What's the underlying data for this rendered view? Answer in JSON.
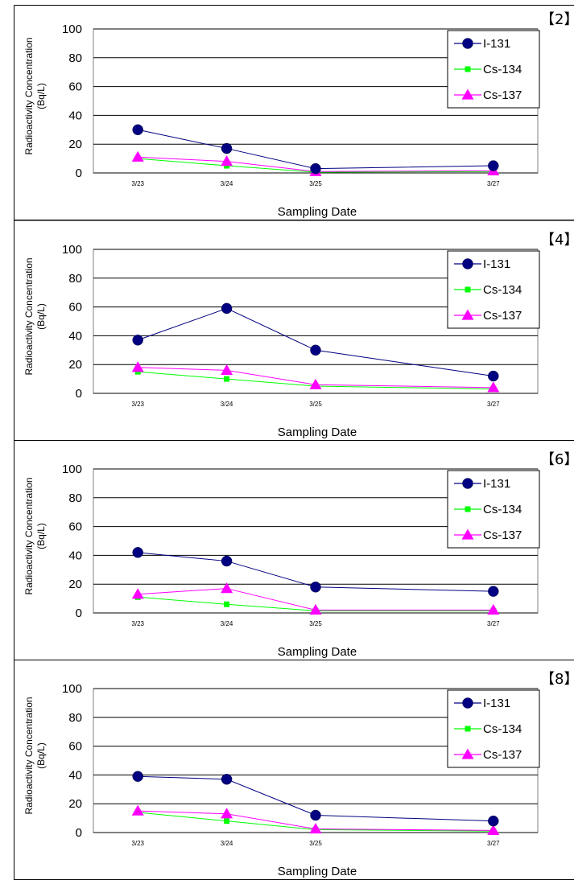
{
  "chart_data": [
    {
      "type": "line",
      "panel_label": "【2】",
      "xlabel": "Sampling Date",
      "ylabel": "Radioactivity Concentration (Bq/L)",
      "ylabel_lines": [
        "Radioactivity Concentration",
        "(Bq/L)"
      ],
      "ylim": [
        0,
        100
      ],
      "yticks": [
        0,
        20,
        40,
        60,
        80,
        100
      ],
      "x_dates": [
        "3/23",
        "3/24",
        "3/25",
        "3/27"
      ],
      "x_days": [
        23,
        24,
        25,
        27
      ],
      "grid": "horizontal",
      "legend_position": "top-right",
      "series": [
        {
          "name": "I-131",
          "values": [
            30,
            17,
            3,
            5
          ]
        },
        {
          "name": "Cs-134",
          "values": [
            10,
            5,
            0.5,
            1
          ]
        },
        {
          "name": "Cs-137",
          "values": [
            11,
            8,
            1,
            1.5
          ]
        }
      ]
    },
    {
      "type": "line",
      "panel_label": "【4】",
      "xlabel": "Sampling Date",
      "ylabel": "Radioactivity Concentration (Bq/L)",
      "ylabel_lines": [
        "Radioactivity Concentration",
        "(Bq/L)"
      ],
      "ylim": [
        0,
        100
      ],
      "yticks": [
        0,
        20,
        40,
        60,
        80,
        100
      ],
      "x_dates": [
        "3/23",
        "3/24",
        "3/25",
        "3/27"
      ],
      "x_days": [
        23,
        24,
        25,
        27
      ],
      "grid": "horizontal",
      "legend_position": "top-right",
      "series": [
        {
          "name": "I-131",
          "values": [
            37,
            59,
            30,
            12
          ]
        },
        {
          "name": "Cs-134",
          "values": [
            15,
            10,
            5,
            3
          ]
        },
        {
          "name": "Cs-137",
          "values": [
            18,
            16,
            6,
            4
          ]
        }
      ]
    },
    {
      "type": "line",
      "panel_label": "【6】",
      "xlabel": "Sampling Date",
      "ylabel": "Radioactivity Concentration (Bq/L)",
      "ylabel_lines": [
        "Radioactivity Concentration",
        "(Bq/L)"
      ],
      "ylim": [
        0,
        100
      ],
      "yticks": [
        0,
        20,
        40,
        60,
        80,
        100
      ],
      "x_dates": [
        "3/23",
        "3/24",
        "3/25",
        "3/27"
      ],
      "x_days": [
        23,
        24,
        25,
        27
      ],
      "grid": "horizontal",
      "legend_position": "top-right",
      "series": [
        {
          "name": "I-131",
          "values": [
            42,
            36,
            18,
            15
          ]
        },
        {
          "name": "Cs-134",
          "values": [
            11,
            6,
            1.5,
            1.5
          ]
        },
        {
          "name": "Cs-137",
          "values": [
            13,
            17,
            2,
            2
          ]
        }
      ]
    },
    {
      "type": "line",
      "panel_label": "【8】",
      "xlabel": "Sampling Date",
      "ylabel": "Radioactivity Concentration (Bq/L)",
      "ylabel_lines": [
        "Radioactivity Concentration",
        "(Bq/L)"
      ],
      "ylim": [
        0,
        100
      ],
      "yticks": [
        0,
        20,
        40,
        60,
        80,
        100
      ],
      "x_dates": [
        "3/23",
        "3/24",
        "3/25",
        "3/27"
      ],
      "x_days": [
        23,
        24,
        25,
        27
      ],
      "grid": "horizontal",
      "legend_position": "top-right",
      "series": [
        {
          "name": "I-131",
          "values": [
            39,
            37,
            12,
            8
          ]
        },
        {
          "name": "Cs-134",
          "values": [
            14,
            8,
            2,
            1
          ]
        },
        {
          "name": "Cs-137",
          "values": [
            15,
            13,
            2.5,
            1.5
          ]
        }
      ]
    }
  ],
  "style": {
    "series_colors": [
      "#000080",
      "#00ff00",
      "#ff00ff"
    ],
    "series_markers": [
      "circle",
      "square",
      "triangle"
    ],
    "gridline_color": "#000000",
    "plot_border_color": "#808080",
    "panel_border_color": "#000000"
  }
}
